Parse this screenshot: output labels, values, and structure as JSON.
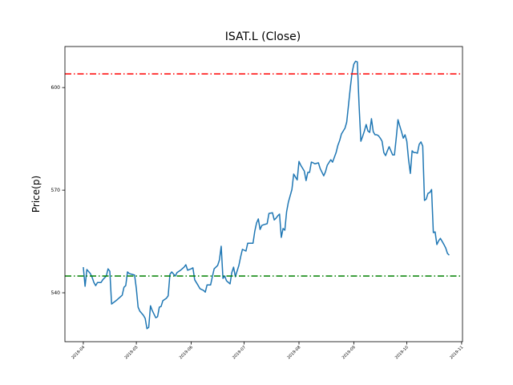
{
  "chart_data": {
    "type": "line",
    "title": "ISAT.L (Close)",
    "ylabel": "Price(p)",
    "x": [
      91,
      92,
      93,
      95,
      96,
      97,
      98,
      99,
      101,
      102,
      104,
      105,
      106,
      107,
      110,
      113,
      114,
      115,
      116,
      117,
      120,
      121,
      122,
      123,
      125,
      126,
      127,
      128,
      129,
      130,
      132,
      133,
      134,
      135,
      136,
      138,
      139,
      140,
      141,
      143,
      144,
      146,
      148,
      149,
      150,
      152,
      153,
      154,
      156,
      157,
      159,
      160,
      161,
      163,
      164,
      165,
      167,
      168,
      169,
      170,
      171,
      172,
      174,
      175,
      176,
      177,
      179,
      180,
      181,
      183,
      184,
      185,
      187,
      188,
      189,
      190,
      191,
      192,
      193,
      195,
      196,
      198,
      199,
      200,
      201,
      202,
      203,
      204,
      205,
      206,
      207,
      209,
      210,
      212,
      213,
      214,
      216,
      217,
      218,
      219,
      220,
      221,
      222,
      224,
      225,
      227,
      228,
      229,
      231,
      232,
      233,
      234,
      235,
      236,
      237,
      239,
      240,
      241,
      242,
      243,
      244,
      245,
      246,
      247,
      248,
      249,
      250,
      251,
      252,
      253,
      254,
      255,
      256,
      257,
      258,
      259,
      260,
      261,
      262,
      263,
      264,
      265,
      266,
      267,
      268,
      269,
      270,
      271,
      272,
      273,
      274,
      275,
      276,
      277,
      278,
      279,
      280,
      281,
      282,
      283,
      284,
      285,
      286,
      287,
      288,
      289,
      290,
      291,
      292,
      293,
      294,
      295,
      296,
      297,
      298
    ],
    "values": [
      547.5,
      541.9,
      546.8,
      545.6,
      544.5,
      543.0,
      542.1,
      543.0,
      543.0,
      543.8,
      544.9,
      547.0,
      546.3,
      536.7,
      537.9,
      539.3,
      541.6,
      542.1,
      546.1,
      545.6,
      545.2,
      541.2,
      535.8,
      534.6,
      533.4,
      532.5,
      529.5,
      529.9,
      536.2,
      534.8,
      532.7,
      533.0,
      535.8,
      536.0,
      537.7,
      538.4,
      539.1,
      545.4,
      546.1,
      544.9,
      545.9,
      546.6,
      547.5,
      548.2,
      546.6,
      547.0,
      547.3,
      543.8,
      542.1,
      541.2,
      540.7,
      540.2,
      542.3,
      542.3,
      544.7,
      547.0,
      548.0,
      549.6,
      553.6,
      544.2,
      544.9,
      543.5,
      542.6,
      545.9,
      547.5,
      544.7,
      548.0,
      550.5,
      552.7,
      552.2,
      554.5,
      554.5,
      554.5,
      558.0,
      560.4,
      561.6,
      558.5,
      559.7,
      559.9,
      560.2,
      563.2,
      563.4,
      561.3,
      561.8,
      562.5,
      563.0,
      556.2,
      558.8,
      558.3,
      563.7,
      566.5,
      570.2,
      574.7,
      573.0,
      578.4,
      577.3,
      575.6,
      572.8,
      575.2,
      575.2,
      578.2,
      578.0,
      577.7,
      578.0,
      576.3,
      574.2,
      575.4,
      577.3,
      578.9,
      578.2,
      579.6,
      581.0,
      583.1,
      584.5,
      586.4,
      588.1,
      589.9,
      594.8,
      599.8,
      604.2,
      606.8,
      607.7,
      607.5,
      594.8,
      584.3,
      585.7,
      587.3,
      589.2,
      587.3,
      586.9,
      590.9,
      587.1,
      586.2,
      586.2,
      585.9,
      585.2,
      584.3,
      581.0,
      580.1,
      581.5,
      582.7,
      581.5,
      580.3,
      580.3,
      585.2,
      590.6,
      588.8,
      587.1,
      585.2,
      586.2,
      584.3,
      578.9,
      574.9,
      581.5,
      581.0,
      581.0,
      580.8,
      583.4,
      584.1,
      582.9,
      567.0,
      567.4,
      569.1,
      569.3,
      570.2,
      557.6,
      557.8,
      554.1,
      555.2,
      555.9,
      555.0,
      554.1,
      553.1,
      551.5,
      551.0
    ],
    "color": "#1f77b4",
    "hlines": [
      {
        "value": 604.0,
        "color": "#ff0000"
      },
      {
        "value": 544.9,
        "color": "#008000"
      }
    ],
    "xlim": [
      80.6,
      305.5
    ],
    "xticks": [
      {
        "value": 91,
        "label": "2019-04"
      },
      {
        "value": 121,
        "label": "2019-05"
      },
      {
        "value": 152,
        "label": "2019-06"
      },
      {
        "value": 182,
        "label": "2019-07"
      },
      {
        "value": 213,
        "label": "2019-08"
      },
      {
        "value": 244,
        "label": "2019-09"
      },
      {
        "value": 274,
        "label": "2019-10"
      },
      {
        "value": 305,
        "label": "2019-11"
      }
    ],
    "ylim": [
      525.7,
      612.0
    ],
    "yticks": [
      540,
      570,
      600
    ]
  }
}
